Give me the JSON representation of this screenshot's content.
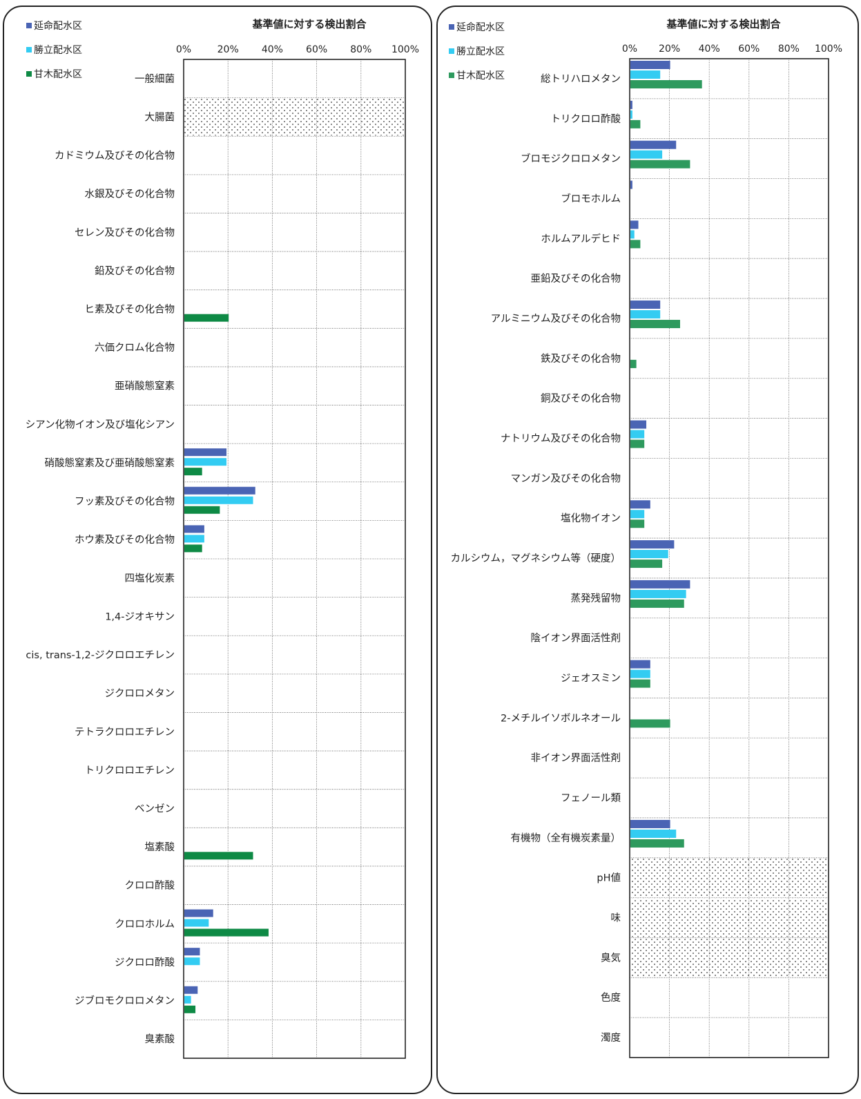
{
  "legend": [
    {
      "name": "延命配水区",
      "color": "#4a64b4"
    },
    {
      "name": "勝立配水区",
      "color": "#33ccf2"
    },
    {
      "name": "甘木配水区",
      "color": "#0e8a45"
    }
  ],
  "chart_data": [
    {
      "type": "bar",
      "orientation": "horizontal",
      "title": "基準値に対する検出割合",
      "xticks": [
        "0%",
        "20%",
        "40%",
        "60%",
        "80%",
        "100%"
      ],
      "xlim": [
        0,
        100
      ],
      "unit": "%",
      "grid": true,
      "legend_position": "top-left",
      "series_colors": [
        "#4a64b4",
        "#33ccf2",
        "#0e8a45"
      ],
      "series_names": [
        "延命配水区",
        "勝立配水区",
        "甘木配水区"
      ],
      "categories": [
        {
          "label": "一般細菌",
          "values": [
            0,
            0,
            0
          ]
        },
        {
          "label": "大腸菌",
          "values": [
            null,
            null,
            null
          ],
          "hatched": true
        },
        {
          "label": "カドミウム及びその化合物",
          "values": [
            0,
            0,
            0
          ]
        },
        {
          "label": "水銀及びその化合物",
          "values": [
            0,
            0,
            0
          ]
        },
        {
          "label": "セレン及びその化合物",
          "values": [
            0,
            0,
            0
          ]
        },
        {
          "label": "鉛及びその化合物",
          "values": [
            0,
            0,
            0
          ]
        },
        {
          "label": "ヒ素及びその化合物",
          "values": [
            0,
            0,
            20
          ]
        },
        {
          "label": "六価クロム化合物",
          "values": [
            0,
            0,
            0
          ]
        },
        {
          "label": "亜硝酸態窒素",
          "values": [
            0,
            0,
            0
          ]
        },
        {
          "label": "シアン化物イオン及び塩化シアン",
          "values": [
            0,
            0,
            0
          ]
        },
        {
          "label": "硝酸態窒素及び亜硝酸態窒素",
          "values": [
            19,
            19,
            8
          ]
        },
        {
          "label": "フッ素及びその化合物",
          "values": [
            32,
            31,
            16
          ]
        },
        {
          "label": "ホウ素及びその化合物",
          "values": [
            9,
            9,
            8
          ]
        },
        {
          "label": "四塩化炭素",
          "values": [
            0,
            0,
            0
          ]
        },
        {
          "label": "1,4-ジオキサン",
          "values": [
            0,
            0,
            0
          ]
        },
        {
          "label": "cis, trans-1,2-ジクロロエチレン",
          "values": [
            0,
            0,
            0
          ]
        },
        {
          "label": "ジクロロメタン",
          "values": [
            0,
            0,
            0
          ]
        },
        {
          "label": "テトラクロロエチレン",
          "values": [
            0,
            0,
            0
          ]
        },
        {
          "label": "トリクロロエチレン",
          "values": [
            0,
            0,
            0
          ]
        },
        {
          "label": "ベンゼン",
          "values": [
            0,
            0,
            0
          ]
        },
        {
          "label": "塩素酸",
          "values": [
            0,
            0,
            31
          ]
        },
        {
          "label": "クロロ酢酸",
          "values": [
            0,
            0,
            0
          ]
        },
        {
          "label": "クロロホルム",
          "values": [
            13,
            11,
            38
          ]
        },
        {
          "label": "ジクロロ酢酸",
          "values": [
            7,
            7,
            0
          ]
        },
        {
          "label": "ジブロモクロロメタン",
          "values": [
            6,
            3,
            5
          ]
        },
        {
          "label": "臭素酸",
          "values": [
            0,
            0,
            0
          ]
        }
      ]
    },
    {
      "type": "bar",
      "orientation": "horizontal",
      "title": "基準値に対する検出割合",
      "xticks": [
        "0%",
        "20%",
        "40%",
        "60%",
        "80%",
        "100%"
      ],
      "xlim": [
        0,
        100
      ],
      "unit": "%",
      "grid": true,
      "legend_position": "top-left",
      "series_colors": [
        "#4a64b4",
        "#33ccf2",
        "#2e9a5e"
      ],
      "series_names": [
        "延命配水区",
        "勝立配水区",
        "甘木配水区"
      ],
      "categories": [
        {
          "label": "総トリハロメタン",
          "values": [
            20,
            15,
            36
          ]
        },
        {
          "label": "トリクロロ酢酸",
          "values": [
            1,
            1,
            5
          ]
        },
        {
          "label": "ブロモジクロロメタン",
          "values": [
            23,
            16,
            30
          ]
        },
        {
          "label": "ブロモホルム",
          "values": [
            1,
            0,
            0
          ]
        },
        {
          "label": "ホルムアルデヒド",
          "values": [
            4,
            2,
            5
          ]
        },
        {
          "label": "亜鉛及びその化合物",
          "values": [
            0,
            0,
            0
          ]
        },
        {
          "label": "アルミニウム及びその化合物",
          "values": [
            15,
            15,
            25
          ]
        },
        {
          "label": "鉄及びその化合物",
          "values": [
            0,
            0,
            3
          ]
        },
        {
          "label": "銅及びその化合物",
          "values": [
            0,
            0,
            0
          ]
        },
        {
          "label": "ナトリウム及びその化合物",
          "values": [
            8,
            7,
            7
          ]
        },
        {
          "label": "マンガン及びその化合物",
          "values": [
            0,
            0,
            0
          ]
        },
        {
          "label": "塩化物イオン",
          "values": [
            10,
            7,
            7
          ]
        },
        {
          "label": "カルシウム，マグネシウム等（硬度）",
          "values": [
            22,
            19,
            16
          ]
        },
        {
          "label": "蒸発残留物",
          "values": [
            30,
            28,
            27
          ]
        },
        {
          "label": "陰イオン界面活性剤",
          "values": [
            0,
            0,
            0
          ]
        },
        {
          "label": "ジェオスミン",
          "values": [
            10,
            10,
            10
          ]
        },
        {
          "label": "2-メチルイソボルネオール",
          "values": [
            0,
            0,
            20
          ]
        },
        {
          "label": "非イオン界面活性剤",
          "values": [
            0,
            0,
            0
          ]
        },
        {
          "label": "フェノール類",
          "values": [
            0,
            0,
            0
          ]
        },
        {
          "label": "有機物（全有機炭素量）",
          "values": [
            20,
            23,
            27
          ]
        },
        {
          "label": "pH値",
          "values": [
            null,
            null,
            null
          ],
          "hatched": true
        },
        {
          "label": "味",
          "values": [
            null,
            null,
            null
          ],
          "hatched": true
        },
        {
          "label": "臭気",
          "values": [
            null,
            null,
            null
          ],
          "hatched": true
        },
        {
          "label": "色度",
          "values": [
            0,
            0,
            0
          ]
        },
        {
          "label": "濁度",
          "values": [
            0,
            0,
            0
          ]
        }
      ]
    }
  ]
}
